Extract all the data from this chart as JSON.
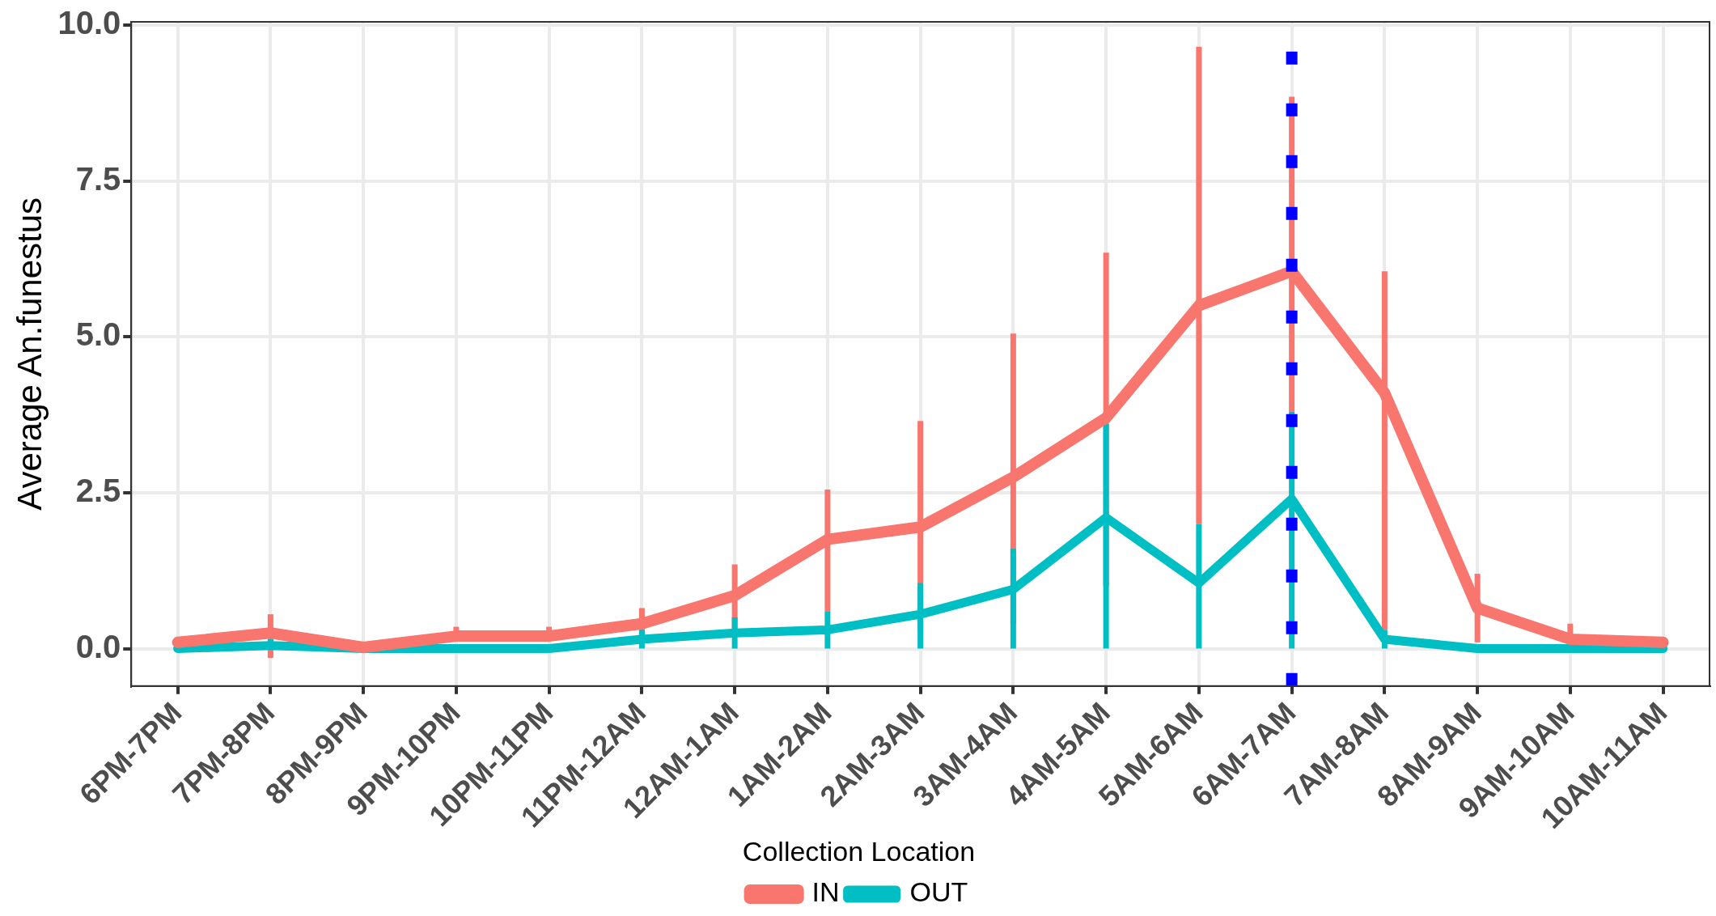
{
  "chart_data": {
    "type": "line",
    "ylabel": "Average An.funestus",
    "legend_title": "Collection Location",
    "categories": [
      "6PM-7PM",
      "7PM-8PM",
      "8PM-9PM",
      "9PM-10PM",
      "10PM-11PM",
      "11PM-12AM",
      "12AM-1AM",
      "1AM-2AM",
      "2AM-3AM",
      "3AM-4AM",
      "4AM-5AM",
      "5AM-6AM",
      "6AM-7AM",
      "7AM-8AM",
      "8AM-9AM",
      "9AM-10AM",
      "10AM-11AM"
    ],
    "series": [
      {
        "name": "IN",
        "color": "#f8766d",
        "values": [
          0.1,
          0.25,
          0.02,
          0.2,
          0.2,
          0.4,
          0.85,
          1.75,
          1.95,
          2.75,
          3.7,
          5.5,
          6.05,
          4.1,
          0.65,
          0.15,
          0.1
        ],
        "errors": [
          [
            0,
            0.15
          ],
          [
            -0.15,
            0.55
          ],
          null,
          [
            0.2,
            0.35
          ],
          [
            0.2,
            0.35
          ],
          [
            0.2,
            0.65
          ],
          [
            0.3,
            1.35
          ],
          [
            0.6,
            2.55
          ],
          [
            0.3,
            3.65
          ],
          [
            0.4,
            5.05
          ],
          [
            1.0,
            6.35
          ],
          [
            2.0,
            9.65
          ],
          [
            3.8,
            8.85
          ],
          [
            0.3,
            6.05
          ],
          [
            0.1,
            1.2
          ],
          [
            -0.05,
            0.4
          ],
          [
            0.05,
            0.15
          ]
        ]
      },
      {
        "name": "OUT",
        "color": "#00bfc4",
        "values": [
          0,
          0.05,
          0,
          0,
          0,
          0.15,
          0.25,
          0.3,
          0.55,
          0.95,
          2.1,
          1.05,
          2.4,
          0.15,
          0,
          0,
          0
        ],
        "errors": [
          null,
          [
            0,
            0.15
          ],
          null,
          null,
          null,
          [
            0,
            0.3
          ],
          [
            0,
            0.5
          ],
          [
            0,
            0.6
          ],
          [
            0,
            1.05
          ],
          [
            0,
            1.6
          ],
          [
            0,
            3.6
          ],
          [
            0,
            2.0
          ],
          [
            0,
            3.8
          ],
          [
            0,
            0.3
          ],
          null,
          null,
          null
        ]
      }
    ],
    "ref_lines": [
      {
        "axis": "x",
        "value": "6AM-7AM",
        "color": "#0000ff",
        "line_style": "dotted"
      }
    ],
    "ylim": [
      -0.6,
      10.05
    ],
    "yticks": [
      {
        "value": 0,
        "label": "0.0"
      },
      {
        "value": 2.5,
        "label": "2.5"
      },
      {
        "value": 5,
        "label": "5.0"
      },
      {
        "value": 7.5,
        "label": "7.5"
      },
      {
        "value": 10,
        "label": "10.0"
      }
    ],
    "grid": true,
    "legend": "bottom",
    "marker": "none",
    "line_style": "solid"
  }
}
